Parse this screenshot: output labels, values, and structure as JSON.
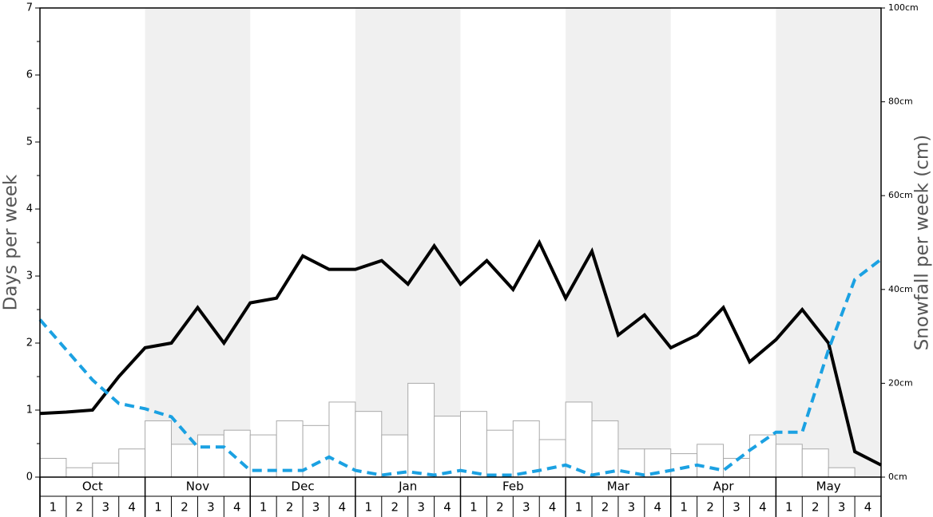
{
  "chart_data": {
    "type": "bar_line",
    "months": [
      "Oct",
      "Nov",
      "Dec",
      "Jan",
      "Feb",
      "Mar",
      "Apr",
      "May"
    ],
    "weeks": [
      "1",
      "2",
      "3",
      "4"
    ],
    "ylabel": "Days per week",
    "y2label": "Snowfall per week (cm)",
    "ylim": [
      0,
      7
    ],
    "yticks": [
      0,
      1,
      2,
      3,
      4,
      5,
      6,
      7
    ],
    "y2lim": [
      0,
      100
    ],
    "y2ticks": [
      {
        "value": 0,
        "label": "0cm"
      },
      {
        "value": 20,
        "label": "20cm"
      },
      {
        "value": 40,
        "label": "40cm"
      },
      {
        "value": 60,
        "label": "60cm"
      },
      {
        "value": 80,
        "label": "80cm"
      },
      {
        "value": 100,
        "label": "100cm"
      }
    ],
    "band_color": "#f0f0f0",
    "bars": {
      "axis": "y2",
      "color": "#ffffff",
      "edge_color": "#aaaaaa",
      "values": [
        4,
        2,
        3,
        6,
        12,
        7,
        9,
        10,
        9,
        12,
        11,
        16,
        14,
        9,
        20,
        13,
        14,
        10,
        12,
        8,
        16,
        12,
        6,
        6,
        5,
        7,
        4,
        9,
        7,
        6,
        2,
        0
      ]
    },
    "series": [
      {
        "color": "#000000",
        "style": "solid",
        "values": [
          0.95,
          0.97,
          1.0,
          1.5,
          1.93,
          2.0,
          2.53,
          2.0,
          2.6,
          2.67,
          3.3,
          3.1,
          3.1,
          3.23,
          2.88,
          3.45,
          2.88,
          3.23,
          2.8,
          3.5,
          2.67,
          3.37,
          2.12,
          2.42,
          1.93,
          2.12,
          2.53,
          1.72,
          2.05,
          2.5,
          2.0,
          0.38,
          0.18
        ]
      },
      {
        "color": "#1ba1e2",
        "style": "dashed",
        "values": [
          2.35,
          1.9,
          1.45,
          1.1,
          1.02,
          0.9,
          0.45,
          0.45,
          0.1,
          0.1,
          0.1,
          0.3,
          0.1,
          0.03,
          0.08,
          0.03,
          0.1,
          0.03,
          0.03,
          0.1,
          0.18,
          0.03,
          0.1,
          0.03,
          0.1,
          0.18,
          0.1,
          0.4,
          0.67,
          0.67,
          1.9,
          2.95,
          3.25
        ]
      }
    ]
  }
}
